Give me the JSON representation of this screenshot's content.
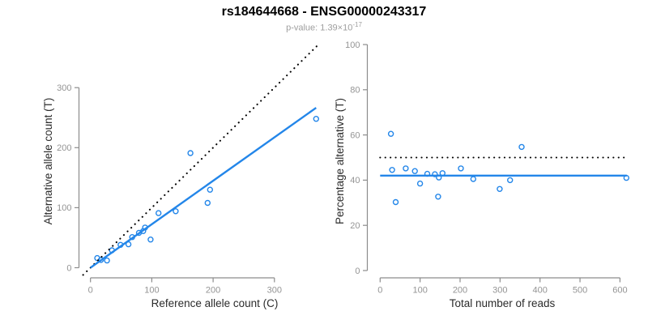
{
  "header": {
    "title": "rs184644668 - ENSG00000243317",
    "subtitle_prefix": "p-value: 1.39×10",
    "subtitle_exponent": "-17"
  },
  "colors": {
    "accent_blue": "#2386e9",
    "reference_black": "#000000",
    "axis_line": "#8c8c8c",
    "tick_label": "#949494",
    "axis_title": "#2b2b2b"
  },
  "chart_data": [
    {
      "type": "scatter",
      "name": "allele-counts",
      "xlabel": "Reference allele count (C)",
      "ylabel": "Alternative allele count (T)",
      "xlim": [
        0,
        372
      ],
      "ylim": [
        0,
        375
      ],
      "x_ticks": [
        0,
        100,
        200,
        300
      ],
      "y_ticks": [
        0,
        100,
        200,
        300
      ],
      "grid": false,
      "legend": null,
      "points": [
        [
          11,
          16
        ],
        [
          17,
          13
        ],
        [
          27,
          12
        ],
        [
          35,
          29
        ],
        [
          49,
          38
        ],
        [
          62,
          39
        ],
        [
          68,
          51
        ],
        [
          79,
          58
        ],
        [
          86,
          61
        ],
        [
          89,
          67
        ],
        [
          98,
          47
        ],
        [
          111,
          91
        ],
        [
          139,
          94
        ],
        [
          163,
          191
        ],
        [
          191,
          108
        ],
        [
          195,
          130
        ],
        [
          368,
          248
        ]
      ],
      "fit_line": {
        "slope": 0.724,
        "intercept": 0,
        "x_range": [
          0,
          368
        ]
      },
      "reference_line": {
        "slope": 1,
        "intercept": 0,
        "style": "dotted"
      }
    },
    {
      "type": "scatter",
      "name": "percentage-vs-coverage",
      "xlabel": "Total number of reads",
      "ylabel": "Percentage alternative (T)",
      "xlim": [
        0,
        625
      ],
      "ylim": [
        0,
        100
      ],
      "x_ticks": [
        0,
        100,
        200,
        300,
        400,
        500,
        600
      ],
      "y_ticks": [
        0,
        20,
        40,
        60,
        80,
        100
      ],
      "grid": false,
      "legend": null,
      "points": [
        [
          27,
          60.5
        ],
        [
          30,
          44.5
        ],
        [
          39,
          30.3
        ],
        [
          64,
          45.2
        ],
        [
          87,
          44.0
        ],
        [
          100,
          38.5
        ],
        [
          118,
          42.8
        ],
        [
          137,
          42.6
        ],
        [
          145,
          32.7
        ],
        [
          147,
          41.2
        ],
        [
          156,
          43.1
        ],
        [
          202,
          45.2
        ],
        [
          233,
          40.5
        ],
        [
          299,
          36.1
        ],
        [
          325,
          40.0
        ],
        [
          354,
          54.7
        ],
        [
          616,
          41.0
        ]
      ],
      "fit_line": {
        "value": 42,
        "x_range": [
          0,
          617
        ]
      },
      "reference_line": {
        "value": 50,
        "x_range": [
          0,
          617
        ],
        "style": "dotted"
      }
    }
  ]
}
